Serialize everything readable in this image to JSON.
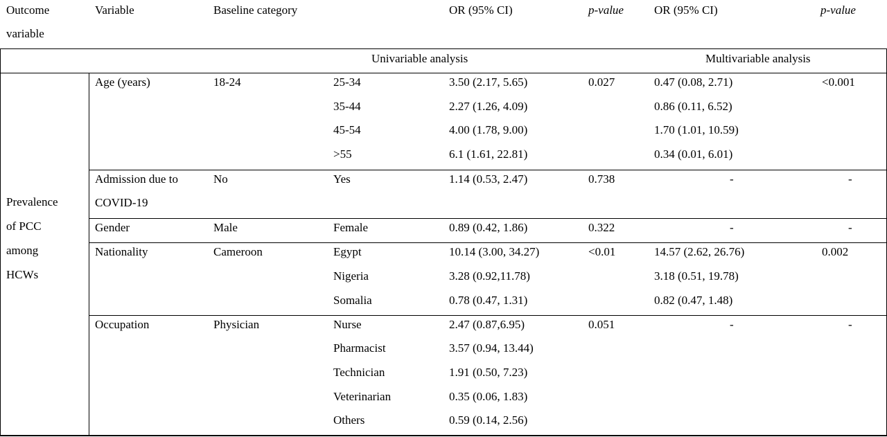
{
  "header": {
    "outcome_line1": "Outcome",
    "outcome_line2": "variable",
    "variable": "Variable",
    "baseline": "Baseline category",
    "or_uni": "OR (95% CI)",
    "p_uni": "p-value",
    "or_multi": "OR (95% CI)",
    "p_multi": "p-value"
  },
  "subheader": {
    "univariable": "Univariable analysis",
    "multivariable": "Multivariable analysis"
  },
  "outcome": {
    "line1": "Prevalence",
    "line2": "of PCC",
    "line3": "among",
    "line4": "HCWs"
  },
  "groups": {
    "age": {
      "variable": "Age (years)",
      "baseline": "18-24",
      "p_uni": "0.027",
      "p_multi": "<0.001",
      "rows": [
        {
          "category": "25-34",
          "or_uni": "3.50 (2.17, 5.65)",
          "or_multi": "0.47 (0.08, 2.71)"
        },
        {
          "category": "35-44",
          "or_uni": "2.27 (1.26, 4.09)",
          "or_multi": "0.86 (0.11, 6.52)"
        },
        {
          "category": "45-54",
          "or_uni": "4.00 (1.78, 9.00)",
          "or_multi": "1.70 (1.01, 10.59)"
        },
        {
          "category": ">55",
          "or_uni": "6.1 (1.61, 22.81)",
          "or_multi": "0.34 (0.01, 6.01)"
        }
      ]
    },
    "admission": {
      "variable_line1": "Admission due to",
      "variable_line2": "COVID-19",
      "baseline": "No",
      "p_uni": "0.738",
      "p_multi": "-",
      "rows": [
        {
          "category": "Yes",
          "or_uni": "1.14 (0.53, 2.47)",
          "or_multi": "-"
        }
      ]
    },
    "gender": {
      "variable": "Gender",
      "baseline": "Male",
      "p_uni": "0.322",
      "p_multi": "-",
      "rows": [
        {
          "category": "Female",
          "or_uni": "0.89 (0.42, 1.86)",
          "or_multi": "-"
        }
      ]
    },
    "nationality": {
      "variable": "Nationality",
      "baseline": "Cameroon",
      "p_uni": "<0.01",
      "p_multi": "0.002",
      "rows": [
        {
          "category": "Egypt",
          "or_uni": "10.14 (3.00, 34.27)",
          "or_multi": "14.57 (2.62, 26.76)"
        },
        {
          "category": "Nigeria",
          "or_uni": "3.28 (0.92,11.78)",
          "or_multi": "3.18 (0.51, 19.78)"
        },
        {
          "category": "Somalia",
          "or_uni": "0.78 (0.47, 1.31)",
          "or_multi": "0.82 (0.47, 1.48)"
        }
      ]
    },
    "occupation": {
      "variable": "Occupation",
      "baseline": "Physician",
      "p_uni": "0.051",
      "p_multi": "-",
      "rows": [
        {
          "category": "Nurse",
          "or_uni": "2.47 (0.87,6.95)",
          "or_multi": "-"
        },
        {
          "category": "Pharmacist",
          "or_uni": "3.57 (0.94, 13.44)"
        },
        {
          "category": "Technician",
          "or_uni": "1.91 (0.50, 7.23)"
        },
        {
          "category": "Veterinarian",
          "or_uni": "0.35 (0.06, 1.83)"
        },
        {
          "category": "Others",
          "or_uni": "0.59 (0.14, 2.56)"
        }
      ]
    }
  }
}
